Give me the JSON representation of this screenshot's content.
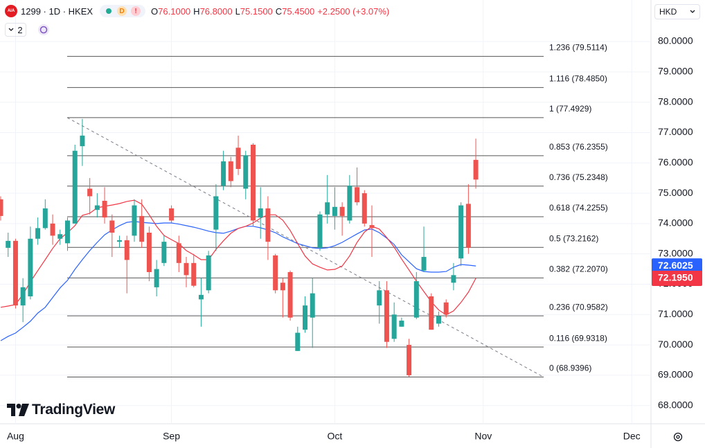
{
  "header": {
    "badge": "AIA",
    "symbol": "1299 · 1D · HKEX",
    "flags": [
      "D",
      "!"
    ],
    "ohlc": [
      [
        "O",
        "76.1000"
      ],
      [
        "H",
        "76.8000"
      ],
      [
        "L",
        "75.1500"
      ],
      [
        "C",
        "75.4500"
      ]
    ],
    "change": "+2.2500 (+3.07%)",
    "layout_count": "2",
    "currency": "HKD"
  },
  "watermark": "TradingView",
  "chart_data": {
    "type": "candlestick",
    "categories": [
      null,
      null,
      "Aug",
      null,
      null,
      null,
      null,
      null,
      null,
      null,
      null,
      null,
      null,
      null,
      null,
      null,
      null,
      null,
      null,
      null,
      null,
      null,
      null,
      "Sep",
      null,
      null,
      null,
      null,
      null,
      null,
      null,
      null,
      null,
      null,
      null,
      null,
      null,
      null,
      null,
      null,
      null,
      null,
      null,
      null,
      null,
      "Oct",
      null,
      null,
      null,
      null,
      null,
      null,
      null,
      null,
      null,
      null,
      null,
      null,
      null,
      null,
      null,
      null,
      null,
      null,
      null,
      "Nov",
      null,
      null,
      null,
      null,
      null,
      null,
      null,
      null,
      null,
      null,
      null,
      null,
      null,
      null,
      null,
      null,
      null,
      null,
      null,
      "Dec",
      null,
      null
    ],
    "open": [
      74.8,
      73.2,
      73.43,
      71.3,
      71.6,
      73.5,
      73.85,
      74.0,
      73.5,
      73.35,
      74.0,
      76.55,
      75.15,
      74.45,
      74.75,
      74.1,
      73.4,
      73.45,
      73.6,
      74.25,
      73.7,
      71.9,
      72.7,
      74.5,
      73.35,
      72.7,
      72.7,
      71.5,
      71.8,
      73.8,
      75.25,
      76.05,
      76.5,
      75.15,
      76.6,
      74.2,
      74.5,
      72.95,
      72.05,
      72.4,
      69.8,
      70.5,
      70.9,
      73.2,
      74.3,
      74.25,
      74.55,
      74.1,
      75.2,
      75.0,
      73.95,
      71.3,
      71.8,
      70.2,
      70.6,
      70.0,
      70.9,
      72.45,
      71.6,
      70.7,
      71.4,
      72.05,
      72.85,
      74.65,
      76.1,
      null,
      null,
      null,
      null,
      null,
      null,
      null,
      null,
      null,
      null,
      null,
      null,
      null,
      null,
      null,
      null,
      null,
      null,
      null,
      null,
      null,
      null,
      null
    ],
    "high": [
      74.9,
      73.7,
      73.5,
      72.2,
      73.9,
      74.2,
      74.8,
      74.3,
      73.8,
      74.2,
      76.6,
      77.45,
      75.5,
      75.0,
      75.2,
      74.3,
      73.6,
      73.6,
      74.8,
      74.8,
      73.9,
      72.8,
      73.6,
      74.6,
      73.6,
      72.9,
      73.0,
      72.2,
      73.1,
      75.3,
      76.4,
      76.2,
      76.9,
      76.4,
      76.65,
      75.2,
      74.9,
      73.0,
      72.2,
      72.45,
      70.6,
      71.6,
      72.2,
      74.4,
      75.6,
      75.2,
      74.7,
      75.6,
      75.85,
      75.1,
      74.6,
      72.1,
      72.1,
      71.4,
      70.9,
      70.2,
      72.4,
      73.9,
      71.7,
      71.1,
      71.5,
      72.7,
      74.7,
      75.3,
      76.8,
      null,
      null,
      null,
      null,
      null,
      null,
      null,
      null,
      null,
      null,
      null,
      null,
      null,
      null,
      null,
      null,
      null,
      null,
      null,
      null,
      null,
      null,
      null
    ],
    "low": [
      74.1,
      72.9,
      71.2,
      70.75,
      71.5,
      73.3,
      73.8,
      73.3,
      73.3,
      73.1,
      74.0,
      75.9,
      74.3,
      74.2,
      74.0,
      72.9,
      73.2,
      71.7,
      73.4,
      73.2,
      72.1,
      71.6,
      72.6,
      74.0,
      72.4,
      71.9,
      71.9,
      70.6,
      71.7,
      73.1,
      75.1,
      75.2,
      75.6,
      74.8,
      73.9,
      73.5,
      72.8,
      71.7,
      70.9,
      70.8,
      69.8,
      70.4,
      69.9,
      73.1,
      74.0,
      73.8,
      73.6,
      74.0,
      74.6,
      73.9,
      72.9,
      70.7,
      69.9,
      70.1,
      70.6,
      68.95,
      70.85,
      72.4,
      70.5,
      70.6,
      70.9,
      71.8,
      72.6,
      73.0,
      75.15,
      null,
      null,
      null,
      null,
      null,
      null,
      null,
      null,
      null,
      null,
      null,
      null,
      null,
      null,
      null,
      null,
      null,
      null,
      null,
      null,
      null,
      null,
      null
    ],
    "close": [
      74.25,
      73.43,
      71.3,
      71.9,
      73.5,
      73.85,
      74.5,
      73.6,
      73.65,
      74.1,
      76.4,
      76.9,
      74.9,
      74.6,
      74.2,
      73.7,
      73.45,
      72.8,
      74.6,
      73.4,
      72.4,
      72.5,
      73.4,
      74.1,
      72.7,
      72.3,
      71.95,
      71.65,
      72.95,
      74.9,
      76.05,
      75.4,
      75.8,
      76.25,
      74.1,
      74.5,
      73.4,
      71.8,
      71.8,
      70.9,
      70.4,
      71.3,
      71.7,
      74.3,
      74.7,
      74.55,
      74.25,
      75.25,
      74.7,
      74.0,
      73.85,
      71.8,
      70.1,
      71.0,
      70.8,
      69.0,
      72.1,
      72.9,
      70.5,
      70.95,
      71.0,
      72.3,
      74.6,
      73.2,
      75.45,
      null,
      null,
      null,
      null,
      null,
      null,
      null,
      null,
      null,
      null,
      null,
      null,
      null,
      null,
      null,
      null,
      null,
      null,
      null,
      null,
      null,
      null,
      null
    ],
    "up_color": "#26a69a",
    "down_color": "#ef5350",
    "series": [
      {
        "color": "#2962ff",
        "last_label": "72.6025",
        "values": [
          70.14,
          70.28,
          70.39,
          70.58,
          70.78,
          71.05,
          71.24,
          71.56,
          71.88,
          72.13,
          72.49,
          72.81,
          73.11,
          73.38,
          73.63,
          73.79,
          73.93,
          74.04,
          74.07,
          74.04,
          74.02,
          74.0,
          74.02,
          74.02,
          73.98,
          73.93,
          73.88,
          73.82,
          73.75,
          73.7,
          73.68,
          73.75,
          73.84,
          73.91,
          73.91,
          73.86,
          73.79,
          73.7,
          73.56,
          73.45,
          73.34,
          73.27,
          73.2,
          73.18,
          73.2,
          73.27,
          73.38,
          73.52,
          73.66,
          73.79,
          73.82,
          73.7,
          73.52,
          73.31,
          72.97,
          72.74,
          72.51,
          72.42,
          72.4,
          72.4,
          72.42,
          72.56,
          72.65,
          72.63,
          72.6025,
          null,
          null,
          null,
          null,
          null,
          null,
          null,
          null,
          null,
          null,
          null,
          null,
          null,
          null,
          null,
          null,
          null,
          null,
          null,
          null,
          null,
          null,
          null
        ]
      },
      {
        "color": "#f23645",
        "last_label": "72.1950",
        "values": [
          71.24,
          71.28,
          71.33,
          71.67,
          72.08,
          72.45,
          72.81,
          73.18,
          73.5,
          73.7,
          73.93,
          74.27,
          74.34,
          74.52,
          74.57,
          74.61,
          74.66,
          74.73,
          74.77,
          74.64,
          74.29,
          73.91,
          73.61,
          73.47,
          73.34,
          73.11,
          72.97,
          72.81,
          72.81,
          73.15,
          73.43,
          73.68,
          73.84,
          73.91,
          74.02,
          74.18,
          74.29,
          74.29,
          74.11,
          73.77,
          73.34,
          72.93,
          72.67,
          72.56,
          72.47,
          72.49,
          72.6,
          72.93,
          73.38,
          73.72,
          73.91,
          73.82,
          73.54,
          73.22,
          72.83,
          72.47,
          72.1,
          71.76,
          71.42,
          71.15,
          70.99,
          71.12,
          71.4,
          71.74,
          72.195,
          null,
          null,
          null,
          null,
          null,
          null,
          null,
          null,
          null,
          null,
          null,
          null,
          null,
          null,
          null,
          null,
          null,
          null,
          null,
          null,
          null,
          null,
          null
        ]
      }
    ],
    "fib_levels": [
      {
        "label": "1.236 (79.5114)",
        "price": 79.5114
      },
      {
        "label": "1.116 (78.4850)",
        "price": 78.485
      },
      {
        "label": "1 (77.4929)",
        "price": 77.4929
      },
      {
        "label": "0.853 (76.2355)",
        "price": 76.2355
      },
      {
        "label": "0.736 (75.2348)",
        "price": 75.2348
      },
      {
        "label": "0.618 (74.2255)",
        "price": 74.2255
      },
      {
        "label": "0.5 (73.2162)",
        "price": 73.2162
      },
      {
        "label": "0.382 (72.2070)",
        "price": 72.207
      },
      {
        "label": "0.236 (70.9582)",
        "price": 70.9582
      },
      {
        "label": "0.116 (69.9318)",
        "price": 69.9318
      },
      {
        "label": "0 (68.9396)",
        "price": 68.9396
      }
    ],
    "ylim": [
      67.4,
      81.37
    ],
    "yticks": [
      {
        "value": 68,
        "label": "68.0000"
      },
      {
        "value": 69,
        "label": "69.0000"
      },
      {
        "value": 70,
        "label": "70.0000"
      },
      {
        "value": 71,
        "label": "71.0000"
      },
      {
        "value": 72,
        "label": "72.0000"
      },
      {
        "value": 73,
        "label": "73.0000"
      },
      {
        "value": 74,
        "label": "74.0000"
      },
      {
        "value": 75,
        "label": "75.0000"
      },
      {
        "value": 76,
        "label": "76.0000"
      },
      {
        "value": 77,
        "label": "77.0000"
      },
      {
        "value": 78,
        "label": "78.0000"
      },
      {
        "value": 79,
        "label": "79.0000"
      },
      {
        "value": 80,
        "label": "80.0000"
      }
    ],
    "grid": true
  }
}
